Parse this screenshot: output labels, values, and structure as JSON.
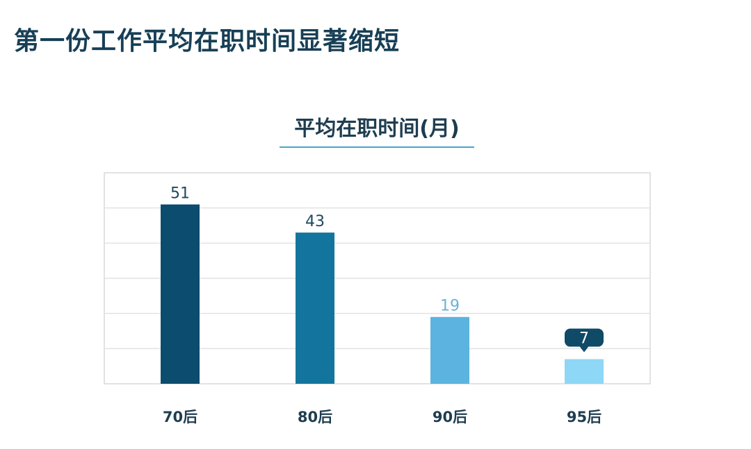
{
  "header": {
    "title": "第一份工作平均在职时间显著缩短"
  },
  "chart_data": {
    "type": "bar",
    "title": "平均在职时间(月)",
    "xlabel": "",
    "ylabel": "",
    "categories": [
      "70后",
      "80后",
      "90后",
      "95后"
    ],
    "values": [
      51,
      43,
      19,
      7
    ],
    "ylim": [
      0,
      60
    ],
    "grid": true,
    "colors": [
      "#0b4c6f",
      "#13759e",
      "#5cb3e0",
      "#8ed7f7"
    ],
    "label_colors": [
      "#1c4a5e",
      "#1c4a5e",
      "#6ab3d6",
      "#ffffff"
    ],
    "highlight_index": 3,
    "highlight_color": "#0f4a66"
  }
}
